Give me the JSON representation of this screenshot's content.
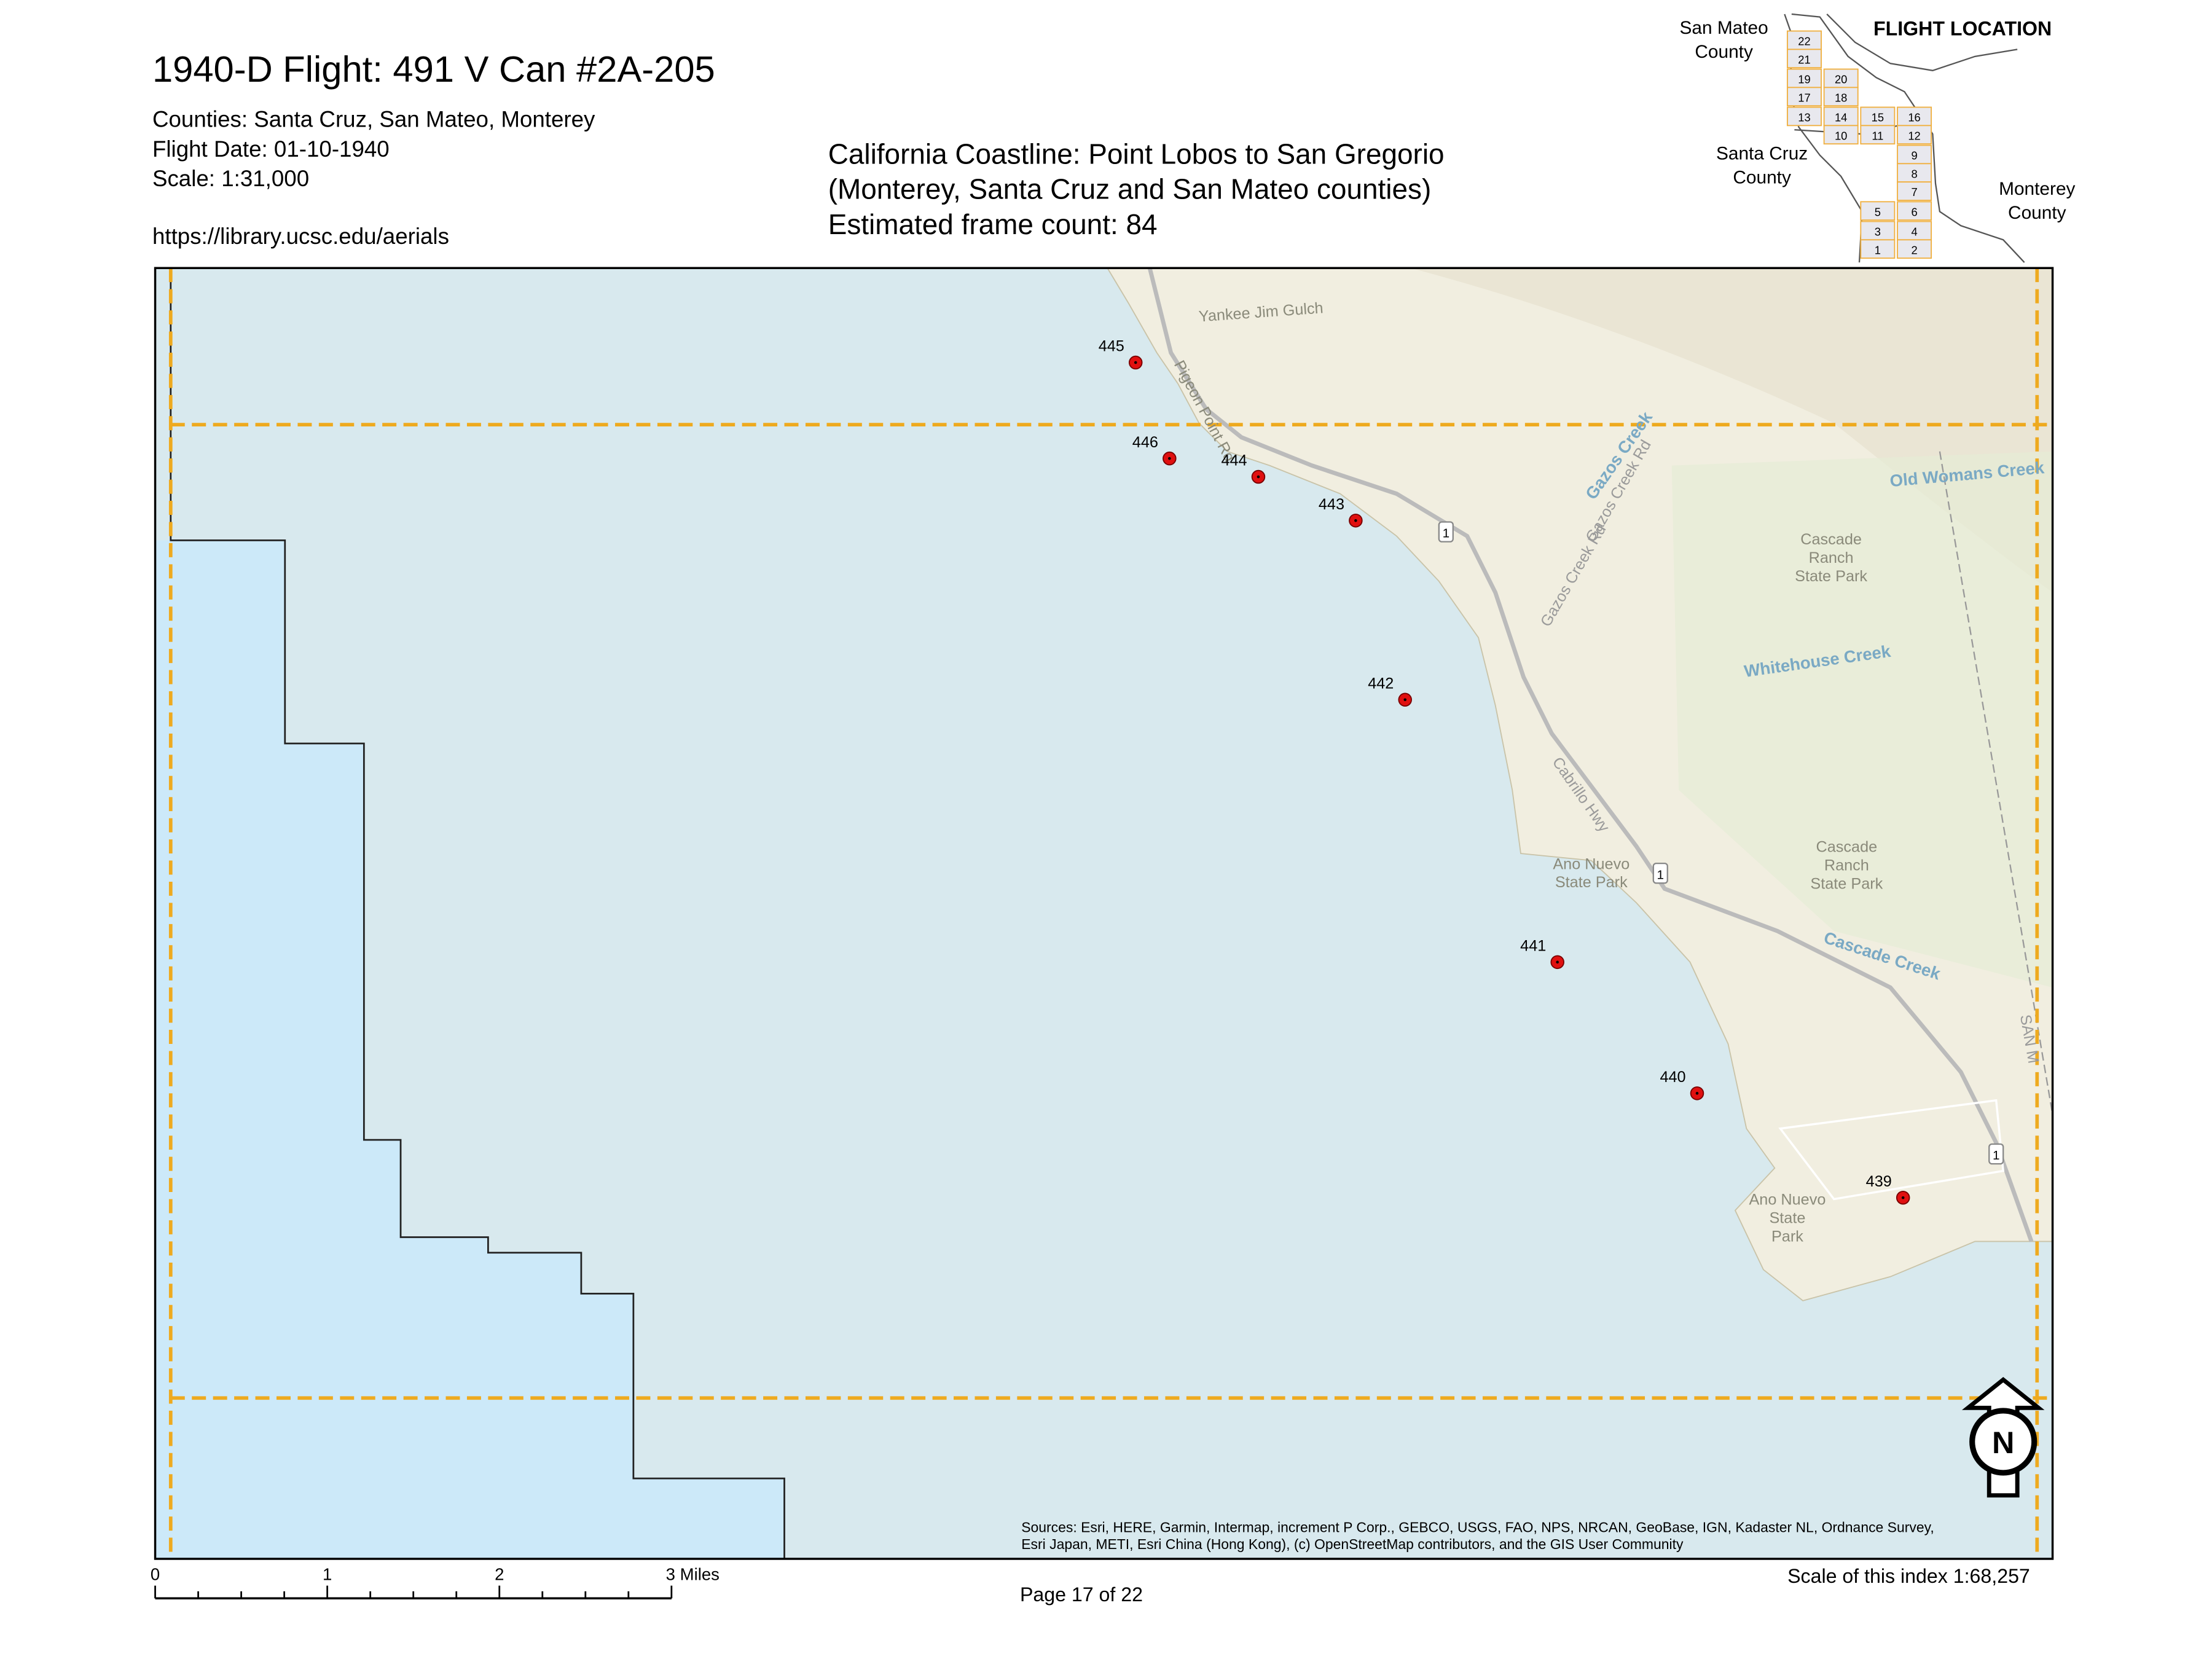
{
  "header": {
    "title": "1940-D Flight: 491 V Can #2A-205",
    "counties": "Counties: Santa Cruz, San Mateo, Monterey",
    "flight_date": "Flight Date: 01-10-1940",
    "scale": "Scale: 1:31,000",
    "url": "https://library.ucsc.edu/aerials"
  },
  "description": {
    "lines": [
      "California Coastline: Point Lobos to San Gregorio",
      "(Monterey, Santa Cruz and San Mateo counties)",
      "Estimated frame count: 84"
    ]
  },
  "inset": {
    "title": "FLIGHT LOCATION",
    "county_labels": [
      [
        "San Mateo",
        "County"
      ],
      [
        "Santa Cruz",
        "County"
      ],
      [
        "Monterey",
        "County"
      ]
    ],
    "cells": [
      "22",
      "21",
      "19",
      "20",
      "17",
      "18",
      "13",
      "14",
      "15",
      "16",
      "10",
      "11",
      "12",
      "9",
      "8",
      "7",
      "5",
      "6",
      "3",
      "4",
      "1",
      "2"
    ]
  },
  "map": {
    "frames": [
      "445",
      "446",
      "444",
      "443",
      "442",
      "441",
      "440",
      "439"
    ],
    "place_labels": [
      "Yankee Jim Gulch",
      "Pigeon Point Rd",
      "Gazos Creek",
      "Gazos Creek Rd",
      "Gazos Creek Rd",
      "Old Womans Creek",
      "Whitehouse Creek",
      "Cabrillo Hwy",
      "Cascade Creek",
      "SAN M",
      [
        "Cascade",
        "Ranch",
        "State Park"
      ],
      [
        "Cascade",
        "Ranch",
        "State Park"
      ],
      [
        "Ano Nuevo",
        "State Park"
      ],
      [
        "Ano Nuevo",
        "State",
        "Park"
      ],
      "1",
      "1",
      "1"
    ]
  },
  "north_arrow": "N",
  "scale_bar": {
    "labels": [
      "0",
      "1",
      "2",
      "3 Miles"
    ]
  },
  "footer": {
    "sources": [
      "Sources: Esri, HERE, Garmin, Intermap, increment P Corp., GEBCO, USGS, FAO, NPS, NRCAN, GeoBase, IGN, Kadaster NL, Ordnance Survey,",
      "Esri Japan, METI, Esri China (Hong Kong), (c) OpenStreetMap contributors, and the GIS User Community"
    ],
    "page": "Page 17 of 22",
    "index_scale": "Scale of this index 1:68,257"
  }
}
